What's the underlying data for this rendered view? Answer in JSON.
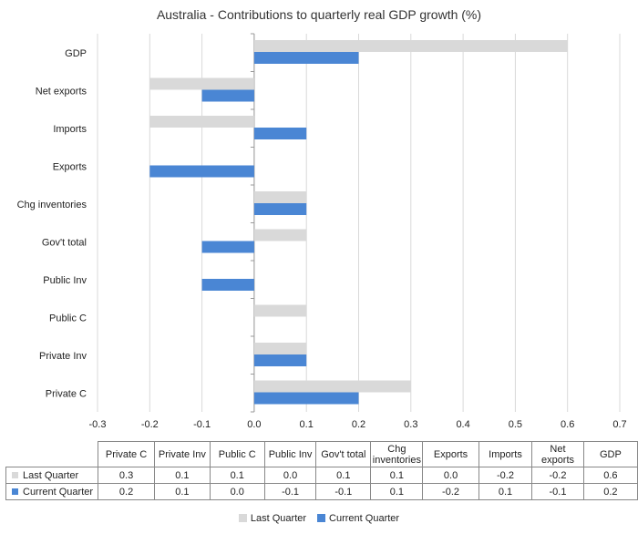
{
  "chart_data": {
    "type": "bar",
    "orientation": "horizontal",
    "title": "Australia - Contributions to quarterly real GDP growth (%)",
    "categories": [
      "Private C",
      "Private Inv",
      "Public C",
      "Public Inv",
      "Gov't total",
      "Chg inventories",
      "Exports",
      "Imports",
      "Net exports",
      "GDP"
    ],
    "table_headers": [
      "Private C",
      "Private Inv",
      "Public C",
      "Public Inv",
      "Gov't total",
      "Chg inventories",
      "Exports",
      "Imports",
      "Net exports",
      "GDP"
    ],
    "series": [
      {
        "name": "Last Quarter",
        "color": "#d9d9d9",
        "values": [
          0.3,
          0.1,
          0.1,
          0.0,
          0.1,
          0.1,
          0.0,
          -0.2,
          -0.2,
          0.6
        ],
        "display": [
          "0.3",
          "0.1",
          "0.1",
          "0.0",
          "0.1",
          "0.1",
          "0.0",
          "-0.2",
          "-0.2",
          "0.6"
        ]
      },
      {
        "name": "Current Quarter",
        "color": "#4a86d4",
        "values": [
          0.2,
          0.1,
          0.0,
          -0.1,
          -0.1,
          0.1,
          -0.2,
          0.1,
          -0.1,
          0.2
        ],
        "display": [
          "0.2",
          "0.1",
          "0.0",
          "-0.1",
          "-0.1",
          "0.1",
          "-0.2",
          "0.1",
          "-0.1",
          "0.2"
        ]
      }
    ],
    "xlim": [
      -0.3,
      0.7
    ],
    "xticks": [
      -0.3,
      -0.2,
      -0.1,
      0.0,
      0.1,
      0.2,
      0.3,
      0.4,
      0.5,
      0.6,
      0.7
    ],
    "xtick_labels": [
      "-0.3",
      "-0.2",
      "-0.1",
      "0.0",
      "0.1",
      "0.2",
      "0.3",
      "0.4",
      "0.5",
      "0.6",
      "0.7"
    ],
    "grid": true,
    "legend_position": "bottom",
    "data_table": true
  }
}
